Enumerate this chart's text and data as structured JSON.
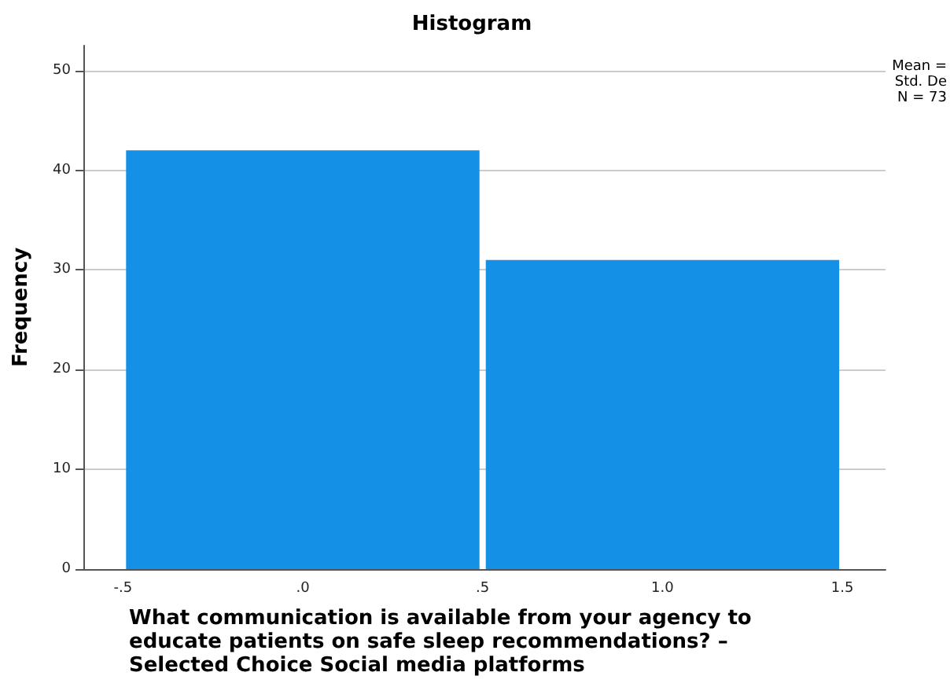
{
  "chart_data": {
    "type": "histogram",
    "title": "Histogram",
    "xlabel": "What communication is available from your agency to educate patients on safe sleep recommendations? – Selected Choice Social media platforms",
    "ylabel": "Frequency",
    "bins": [
      -0.5,
      0.5,
      1.5
    ],
    "values": [
      42,
      31
    ],
    "color": "#1490e6",
    "xlim": [
      -0.61,
      1.62
    ],
    "xticks": [
      {
        "value": -0.5,
        "label": "-.5"
      },
      {
        "value": 0,
        "label": ".0"
      },
      {
        "value": 0.5,
        "label": ".5"
      },
      {
        "value": 1,
        "label": "1.0"
      },
      {
        "value": 1.5,
        "label": "1.5"
      }
    ],
    "ylim": [
      0,
      52.5
    ],
    "yticks": [
      0,
      10,
      20,
      30,
      40,
      50
    ],
    "grid": "y",
    "annotations": [
      "Mean =",
      "Std. De",
      "N = 73"
    ]
  }
}
